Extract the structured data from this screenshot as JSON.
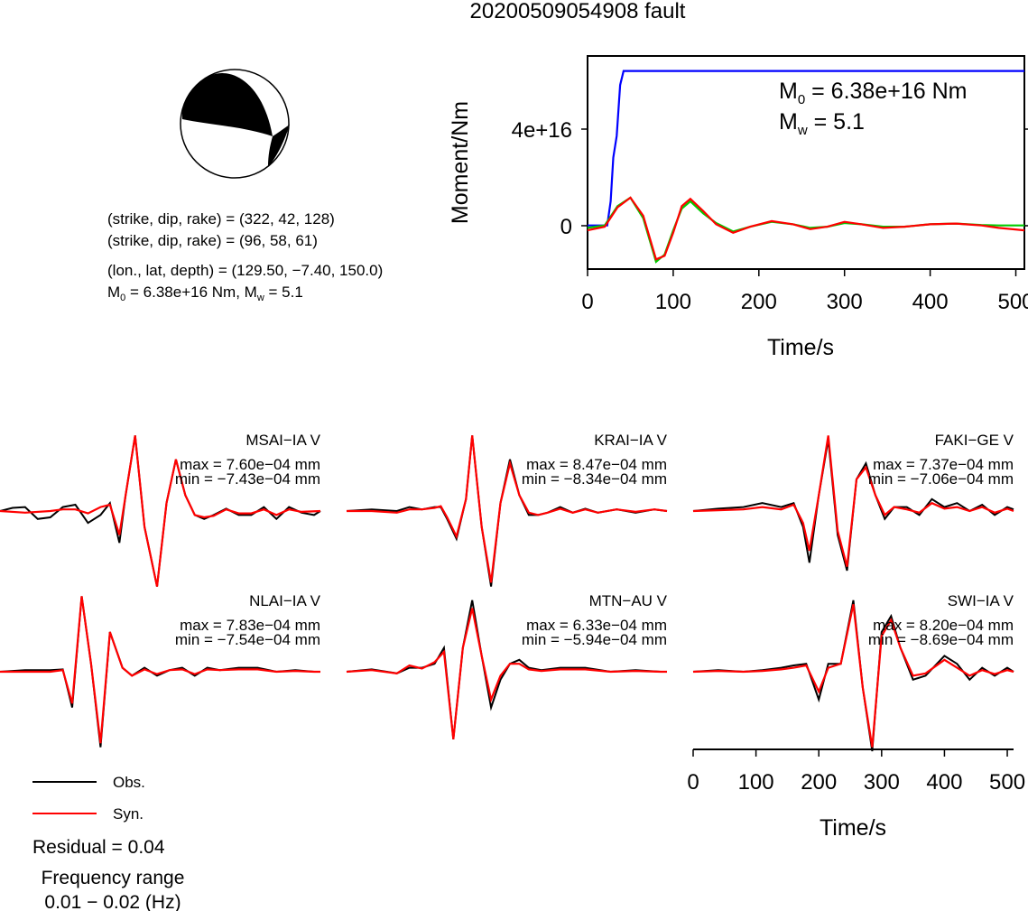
{
  "title": "20200509054908 fault",
  "mechanism": {
    "strike_dip_rake_1": "(strike, dip, rake) = (322, 42, 128)",
    "strike_dip_rake_2": "(strike, dip, rake) = (96, 58, 61)",
    "location": "(lon., lat, depth) = (129.50, −7.40, 150.0)",
    "m0_prefix": "M",
    "m0_sub": "0",
    "m0_rest": " = 6.38e+16 Nm, M",
    "mw_sub": "w",
    "mw_rest": " = 5.1"
  },
  "moment_panel": {
    "ylabel": "Moment/Nm",
    "xlabel": "Time/s",
    "ytick_labels": [
      "4e+16",
      "0"
    ],
    "xtick_labels": [
      "0",
      "100",
      "200",
      "300",
      "400",
      "500"
    ],
    "annot_m0_prefix": "M",
    "annot_m0_sub": "0",
    "annot_m0_rest": " = 6.38e+16 Nm",
    "annot_mw_prefix": "M",
    "annot_mw_sub": "w",
    "annot_mw_rest": " = 5.1",
    "colors": {
      "moment": "#0000ff",
      "green_trace": "#00cc00",
      "red_trace": "#ff0000"
    }
  },
  "waveform_axis": {
    "xlabel": "Time/s",
    "xtick_labels": [
      "0",
      "100",
      "200",
      "300",
      "400",
      "500"
    ]
  },
  "stations": [
    {
      "label": "MSAI−IA V",
      "max": "max = 7.60e−04 mm",
      "min": "min = −7.43e−04 mm"
    },
    {
      "label": "KRAI−IA V",
      "max": "max = 8.47e−04 mm",
      "min": "min = −8.34e−04 mm"
    },
    {
      "label": "FAKI−GE V",
      "max": "max = 7.37e−04 mm",
      "min": "min = −7.06e−04 mm"
    },
    {
      "label": "NLAI−IA V",
      "max": "max = 7.83e−04 mm",
      "min": "min = −7.54e−04 mm"
    },
    {
      "label": "MTN−AU V",
      "max": "max = 6.33e−04 mm",
      "min": "min = −5.94e−04 mm"
    },
    {
      "label": "SWI−IA V",
      "max": "max = 8.20e−04 mm",
      "min": "min = −8.69e−04 mm"
    }
  ],
  "legend": {
    "obs_label": "Obs.",
    "syn_label": "Syn.",
    "obs_color": "#000000",
    "syn_color": "#ff0000"
  },
  "residual": "Residual = 0.04",
  "frequency_label": "Frequency range",
  "frequency_value": "0.01 − 0.02 (Hz)",
  "chart_data": [
    {
      "type": "line",
      "title": "",
      "xlabel": "Time/s",
      "ylabel": "Moment/Nm",
      "xlim": [
        0,
        510
      ],
      "ylim": [
        -1.8e+16,
        7e+16
      ],
      "series": [
        {
          "x": [
            0,
            23,
            27,
            30,
            34,
            38,
            42,
            510
          ],
          "y": [
            0,
            0,
            1e+16,
            2.8e+16,
            3.7e+16,
            5.8e+16,
            6.38e+16,
            6.38e+16
          ]
        },
        {
          "x": [
            0,
            20,
            35,
            50,
            65,
            80,
            90,
            100,
            110,
            120,
            135,
            150,
            170,
            190,
            215,
            240,
            260,
            280,
            300,
            320,
            345,
            370,
            400,
            430,
            460,
            480,
            510
          ],
          "y": [
            -1000000000000000.0,
            0,
            8000000000000000.0,
            1.15e+16,
            3000000000000000.0,
            -1.5e+16,
            -1.2e+16,
            -2000000000000000.0,
            7000000000000000.0,
            1e+16,
            5000000000000000.0,
            1000000000000000.0,
            -2500000000000000.0,
            -500000000000000.0,
            1500000000000000.0,
            500000000000000.0,
            -1000000000000000.0,
            -500000000000000.0,
            1000000000000000.0,
            500000000000000.0,
            -500000000000000.0,
            -500000000000000.0,
            500000000000000.0,
            800000000000000.0,
            200000000000000.0,
            0.0,
            0.0
          ]
        },
        {
          "x": [
            0,
            20,
            35,
            50,
            65,
            80,
            90,
            100,
            110,
            120,
            135,
            150,
            170,
            190,
            215,
            240,
            260,
            280,
            300,
            320,
            345,
            370,
            400,
            430,
            460,
            480,
            510
          ],
          "y": [
            -2000000000000000.0,
            -500000000000000.0,
            7500000000000000.0,
            1.15e+16,
            4000000000000000.0,
            -1.4e+16,
            -1.25e+16,
            -3000000000000000.0,
            8000000000000000.0,
            1.1e+16,
            6000000000000000.0,
            500000000000000.0,
            -3000000000000000.0,
            -500000000000000.0,
            1800000000000000.0,
            500000000000000.0,
            -1500000000000000.0,
            -500000000000000.0,
            1500000000000000.0,
            500000000000000.0,
            -1000000000000000.0,
            -500000000000000.0,
            500000000000000.0,
            800000000000000.0,
            0.0,
            -1000000000000000.0,
            -2000000000000000.0
          ]
        }
      ]
    },
    {
      "type": "line",
      "title": "",
      "xlabel": "Time/s",
      "ylabel": "",
      "xlim": [
        0,
        510
      ],
      "ylim": [
        -1,
        1
      ],
      "stations": [
        {
          "obs_x": [
            0,
            20,
            40,
            60,
            80,
            100,
            120,
            140,
            160,
            175,
            190,
            200,
            215,
            230,
            250,
            265,
            280,
            295,
            310,
            325,
            340,
            360,
            380,
            400,
            420,
            440,
            460,
            480,
            500,
            510
          ],
          "obs_y": [
            0,
            0.04,
            0.05,
            -0.1,
            -0.08,
            0.05,
            0.08,
            -0.15,
            -0.05,
            0.1,
            -0.4,
            0.2,
            0.95,
            -0.2,
            -0.95,
            0.1,
            0.65,
            0.2,
            -0.05,
            -0.1,
            -0.05,
            0.03,
            -0.05,
            -0.05,
            0.05,
            -0.1,
            0.05,
            -0.02,
            -0.05,
            0
          ],
          "syn_x": [
            0,
            40,
            80,
            100,
            120,
            140,
            160,
            175,
            190,
            200,
            215,
            230,
            250,
            265,
            280,
            295,
            310,
            325,
            340,
            360,
            380,
            400,
            420,
            440,
            460,
            480,
            510
          ],
          "syn_y": [
            0,
            -0.02,
            0,
            0.02,
            0.02,
            -0.03,
            0.05,
            0.08,
            -0.3,
            0.2,
            0.95,
            -0.2,
            -0.95,
            0.1,
            0.65,
            0.2,
            -0.05,
            -0.08,
            -0.06,
            0.02,
            -0.03,
            -0.03,
            0.02,
            -0.05,
            0.02,
            -0.01,
            0
          ]
        },
        {
          "obs_x": [
            0,
            40,
            80,
            100,
            120,
            140,
            150,
            160,
            175,
            190,
            200,
            215,
            230,
            245,
            260,
            275,
            290,
            305,
            320,
            340,
            360,
            380,
            400,
            430,
            460,
            490,
            510
          ],
          "obs_y": [
            0,
            0.02,
            0,
            0.05,
            0.02,
            0.05,
            0.05,
            -0.1,
            -0.35,
            0.15,
            0.95,
            -0.2,
            -0.95,
            0.1,
            0.65,
            0.2,
            -0.05,
            -0.05,
            -0.02,
            0.05,
            -0.02,
            0.03,
            -0.02,
            0.02,
            -0.02,
            0.02,
            0
          ],
          "syn_x": [
            0,
            40,
            80,
            100,
            120,
            140,
            150,
            160,
            175,
            190,
            200,
            215,
            230,
            245,
            260,
            275,
            290,
            305,
            320,
            340,
            360,
            380,
            400,
            430,
            460,
            490,
            510
          ],
          "syn_y": [
            0,
            0,
            -0.02,
            0.02,
            0.02,
            0.04,
            0.06,
            -0.08,
            -0.32,
            0.15,
            0.95,
            -0.2,
            -0.9,
            0.1,
            0.6,
            0.2,
            -0.02,
            -0.05,
            -0.02,
            0.03,
            -0.02,
            0.02,
            -0.02,
            0.02,
            -0.01,
            0.02,
            0
          ]
        },
        {
          "obs_x": [
            0,
            40,
            80,
            110,
            140,
            160,
            175,
            185,
            200,
            215,
            230,
            245,
            260,
            275,
            290,
            305,
            320,
            340,
            360,
            380,
            400,
            420,
            440,
            460,
            480,
            500,
            510
          ],
          "obs_y": [
            0,
            0.03,
            0.05,
            0.1,
            0.05,
            0.1,
            -0.2,
            -0.65,
            0.2,
            0.9,
            -0.3,
            -0.75,
            0.4,
            0.6,
            0.2,
            -0.1,
            0.05,
            0.05,
            -0.05,
            0.15,
            0.05,
            0.1,
            0.0,
            0.08,
            -0.05,
            0.05,
            0.02
          ],
          "syn_x": [
            0,
            40,
            80,
            110,
            140,
            160,
            175,
            185,
            200,
            215,
            230,
            245,
            260,
            275,
            290,
            305,
            320,
            340,
            360,
            380,
            400,
            420,
            440,
            460,
            480,
            500,
            510
          ],
          "syn_y": [
            0,
            0.01,
            0.02,
            0.05,
            0.02,
            0.08,
            -0.15,
            -0.5,
            0.2,
            0.95,
            -0.25,
            -0.7,
            0.4,
            0.55,
            0.2,
            -0.05,
            0.05,
            0.02,
            -0.02,
            0.1,
            0.03,
            0.05,
            0.0,
            0.05,
            -0.02,
            0.03,
            0
          ]
        },
        {
          "obs_x": [
            0,
            40,
            80,
            100,
            115,
            130,
            145,
            160,
            175,
            195,
            210,
            230,
            250,
            270,
            290,
            310,
            330,
            350,
            380,
            410,
            440,
            470,
            500,
            510
          ],
          "obs_y": [
            0,
            0.02,
            0.02,
            0.03,
            -0.45,
            0.95,
            0.1,
            -0.95,
            0.5,
            0.05,
            -0.05,
            0.05,
            -0.05,
            0.02,
            0.05,
            -0.05,
            0.05,
            0.02,
            0.05,
            0.05,
            0.0,
            0.02,
            0.0,
            0
          ],
          "syn_x": [
            0,
            40,
            80,
            100,
            115,
            130,
            145,
            160,
            175,
            195,
            210,
            230,
            250,
            270,
            290,
            310,
            330,
            350,
            380,
            410,
            440,
            470,
            500,
            510
          ],
          "syn_y": [
            0,
            0,
            0,
            0.02,
            -0.4,
            0.95,
            0.1,
            -0.9,
            0.5,
            0.05,
            -0.05,
            0.03,
            -0.03,
            0.02,
            0.03,
            -0.03,
            0.03,
            0.02,
            0.03,
            0.03,
            0.0,
            0.01,
            0.0,
            0
          ]
        },
        {
          "obs_x": [
            0,
            40,
            80,
            100,
            120,
            140,
            155,
            170,
            185,
            200,
            215,
            230,
            245,
            260,
            275,
            290,
            310,
            340,
            380,
            420,
            460,
            500,
            510
          ],
          "obs_y": [
            0,
            0.03,
            -0.02,
            0.05,
            0.05,
            0.1,
            0.3,
            -0.85,
            0.3,
            0.9,
            0.2,
            -0.45,
            -0.1,
            0.1,
            0.15,
            0.05,
            0.02,
            0.05,
            0.05,
            0.0,
            0.02,
            0.0,
            0
          ],
          "syn_x": [
            0,
            40,
            80,
            100,
            120,
            140,
            155,
            170,
            185,
            200,
            215,
            230,
            245,
            260,
            275,
            290,
            310,
            340,
            380,
            420,
            460,
            500,
            510
          ],
          "syn_y": [
            0,
            0.02,
            -0.02,
            0.08,
            0.04,
            0.12,
            0.25,
            -0.85,
            0.3,
            0.8,
            0.2,
            -0.35,
            -0.05,
            0.1,
            0.1,
            0.03,
            0.01,
            0.03,
            0.03,
            0.0,
            0.01,
            0.0,
            0
          ]
        },
        {
          "obs_x": [
            0,
            40,
            80,
            110,
            140,
            160,
            180,
            200,
            215,
            235,
            255,
            270,
            285,
            300,
            315,
            330,
            350,
            370,
            400,
            420,
            440,
            460,
            480,
            500,
            510
          ],
          "obs_y": [
            0,
            0.02,
            0.0,
            0.02,
            0.05,
            0.08,
            0.1,
            -0.35,
            0.1,
            0.1,
            0.9,
            -0.2,
            -1.0,
            0.5,
            0.7,
            0.3,
            -0.1,
            -0.05,
            0.2,
            0.1,
            -0.1,
            0.05,
            -0.05,
            0.05,
            0.0
          ],
          "syn_x": [
            0,
            40,
            80,
            110,
            140,
            160,
            180,
            200,
            215,
            235,
            255,
            270,
            285,
            300,
            315,
            330,
            350,
            370,
            400,
            420,
            440,
            460,
            480,
            500,
            510
          ],
          "syn_y": [
            0,
            0.01,
            0.0,
            0.01,
            0.03,
            0.05,
            0.08,
            -0.25,
            0.05,
            0.1,
            0.85,
            -0.2,
            -0.95,
            0.45,
            0.65,
            0.3,
            -0.05,
            -0.02,
            0.15,
            0.05,
            -0.05,
            0.02,
            -0.03,
            0.02,
            0.0
          ]
        }
      ]
    }
  ]
}
